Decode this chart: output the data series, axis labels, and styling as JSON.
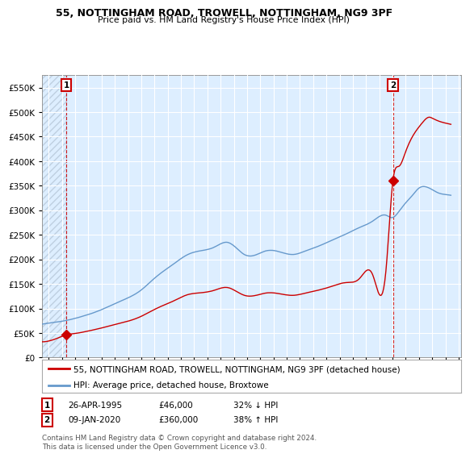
{
  "title": "55, NOTTINGHAM ROAD, TROWELL, NOTTINGHAM, NG9 3PF",
  "subtitle": "Price paid vs. HM Land Registry's House Price Index (HPI)",
  "property_label": "55, NOTTINGHAM ROAD, TROWELL, NOTTINGHAM, NG9 3PF (detached house)",
  "hpi_label": "HPI: Average price, detached house, Broxtowe",
  "annotation1_date": "26-APR-1995",
  "annotation1_price": "£46,000",
  "annotation1_hpi": "32% ↓ HPI",
  "annotation2_date": "09-JAN-2020",
  "annotation2_price": "£360,000",
  "annotation2_hpi": "38% ↑ HPI",
  "footer": "Contains HM Land Registry data © Crown copyright and database right 2024.\nThis data is licensed under the Open Government Licence v3.0.",
  "property_color": "#cc0000",
  "hpi_color": "#6699cc",
  "background_color": "#ffffff",
  "chart_bg_color": "#ddeeff",
  "grid_color": "#ffffff",
  "ylim": [
    0,
    575000
  ],
  "yticks": [
    0,
    50000,
    100000,
    150000,
    200000,
    250000,
    300000,
    350000,
    400000,
    450000,
    500000,
    550000
  ],
  "sale1_x": 1995.32,
  "sale1_y": 46000,
  "sale2_x": 2020.03,
  "sale2_y": 360000,
  "xlim_start": 1993.5,
  "xlim_end": 2025.2
}
